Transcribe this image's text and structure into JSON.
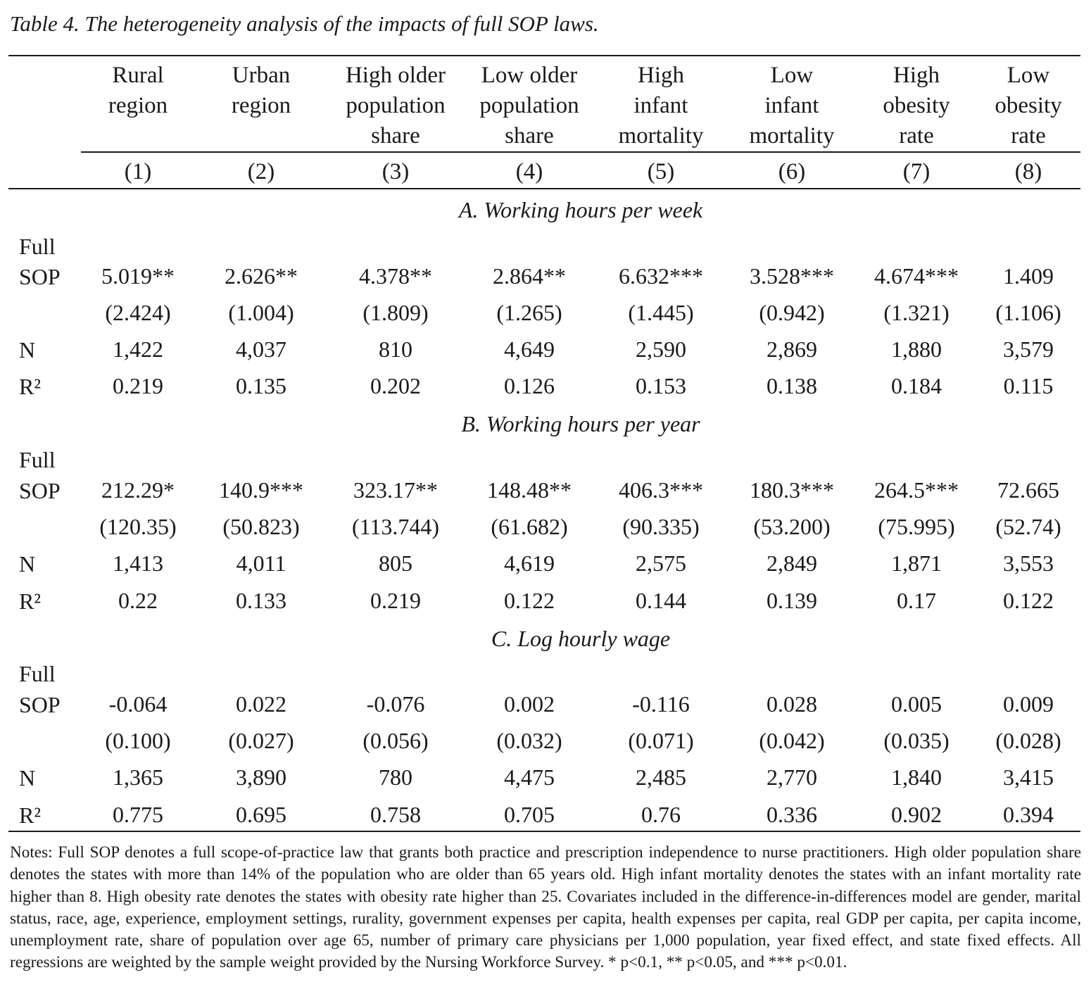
{
  "caption": "Table 4. The heterogeneity analysis of the impacts of full SOP laws.",
  "columns": [
    {
      "header": [
        "Rural",
        "region"
      ],
      "number": "(1)"
    },
    {
      "header": [
        "Urban",
        "region"
      ],
      "number": "(2)"
    },
    {
      "header": [
        "High older",
        "population",
        "share"
      ],
      "number": "(3)"
    },
    {
      "header": [
        "Low older",
        "population",
        "share"
      ],
      "number": "(4)"
    },
    {
      "header": [
        "High",
        "infant",
        "mortality"
      ],
      "number": "(5)"
    },
    {
      "header": [
        "Low",
        "infant",
        "mortality"
      ],
      "number": "(6)"
    },
    {
      "header": [
        "High",
        "obesity",
        "rate"
      ],
      "number": "(7)"
    },
    {
      "header": [
        "Low",
        "obesity",
        "rate"
      ],
      "number": "(8)"
    }
  ],
  "row_labels": {
    "sop_line1": "Full",
    "sop_line2": "SOP",
    "n": "N",
    "r2": "R²"
  },
  "panels": [
    {
      "title": "A. Working hours per week",
      "coef": [
        "5.019**",
        "2.626**",
        "4.378**",
        "2.864**",
        "6.632***",
        "3.528***",
        "4.674***",
        "1.409"
      ],
      "se": [
        "(2.424)",
        "(1.004)",
        "(1.809)",
        "(1.265)",
        "(1.445)",
        "(0.942)",
        "(1.321)",
        "(1.106)"
      ],
      "n": [
        "1,422",
        "4,037",
        "810",
        "4,649",
        "2,590",
        "2,869",
        "1,880",
        "3,579"
      ],
      "r2": [
        "0.219",
        "0.135",
        "0.202",
        "0.126",
        "0.153",
        "0.138",
        "0.184",
        "0.115"
      ]
    },
    {
      "title": "B. Working hours per year",
      "coef": [
        "212.29*",
        "140.9***",
        "323.17**",
        "148.48**",
        "406.3***",
        "180.3***",
        "264.5***",
        "72.665"
      ],
      "se": [
        "(120.35)",
        "(50.823)",
        "(113.744)",
        "(61.682)",
        "(90.335)",
        "(53.200)",
        "(75.995)",
        "(52.74)"
      ],
      "n": [
        "1,413",
        "4,011",
        "805",
        "4,619",
        "2,575",
        "2,849",
        "1,871",
        "3,553"
      ],
      "r2": [
        "0.22",
        "0.133",
        "0.219",
        "0.122",
        "0.144",
        "0.139",
        "0.17",
        "0.122"
      ]
    },
    {
      "title": "C. Log hourly wage",
      "coef": [
        "-0.064",
        "0.022",
        "-0.076",
        "0.002",
        "-0.116",
        "0.028",
        "0.005",
        "0.009"
      ],
      "se": [
        "(0.100)",
        "(0.027)",
        "(0.056)",
        "(0.032)",
        "(0.071)",
        "(0.042)",
        "(0.035)",
        "(0.028)"
      ],
      "n": [
        "1,365",
        "3,890",
        "780",
        "4,475",
        "2,485",
        "2,770",
        "1,840",
        "3,415"
      ],
      "r2": [
        "0.775",
        "0.695",
        "0.758",
        "0.705",
        "0.76",
        "0.336",
        "0.902",
        "0.394"
      ]
    }
  ],
  "notes": "Notes: Full SOP denotes a full scope-of-practice law that grants both practice and prescription independence to nurse practitioners. High older population share denotes the states with more than 14% of the population who are older than 65 years old. High infant mortality denotes the states with an infant mortality rate higher than 8. High obesity rate denotes the states with obesity rate higher than 25. Covariates included in the difference-in-differences model are gender, marital status, race, age, experience, employment settings, rurality, government expenses per capita, health expenses per capita, real GDP per capita, per capita income, unemployment rate, share of population over age 65, number of primary care physicians per 1,000 population, year fixed effect, and state fixed effects. All regressions are weighted by the sample weight provided by the Nursing Workforce Survey. * p<0.1, ** p<0.05, and *** p<0.01."
}
